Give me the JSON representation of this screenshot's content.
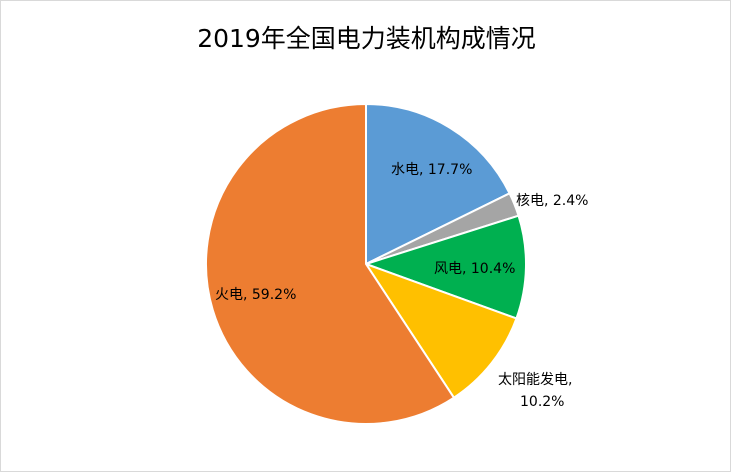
{
  "chart_data": {
    "type": "pie",
    "title": "2019年全国电力装机构成情况",
    "start_angle": "12 o'clock",
    "direction": "clockwise",
    "slices": [
      {
        "label": "水电",
        "value": 17.7,
        "text": "水电, 17.7%",
        "color": "#5B9BD5"
      },
      {
        "label": "核电",
        "value": 2.4,
        "text": "核电, 2.4%",
        "color": "#A5A5A5"
      },
      {
        "label": "风电",
        "value": 10.4,
        "text": "风电, 10.4%",
        "color": "#00B050"
      },
      {
        "label": "太阳能发电",
        "value": 10.2,
        "text": "太阳能发电, 10.2%",
        "text_lines": [
          "太阳能发电,",
          "10.2%"
        ],
        "color": "#FFC000"
      },
      {
        "label": "火电",
        "value": 59.2,
        "text": "火电, 59.2%",
        "color": "#ED7D31"
      }
    ]
  }
}
